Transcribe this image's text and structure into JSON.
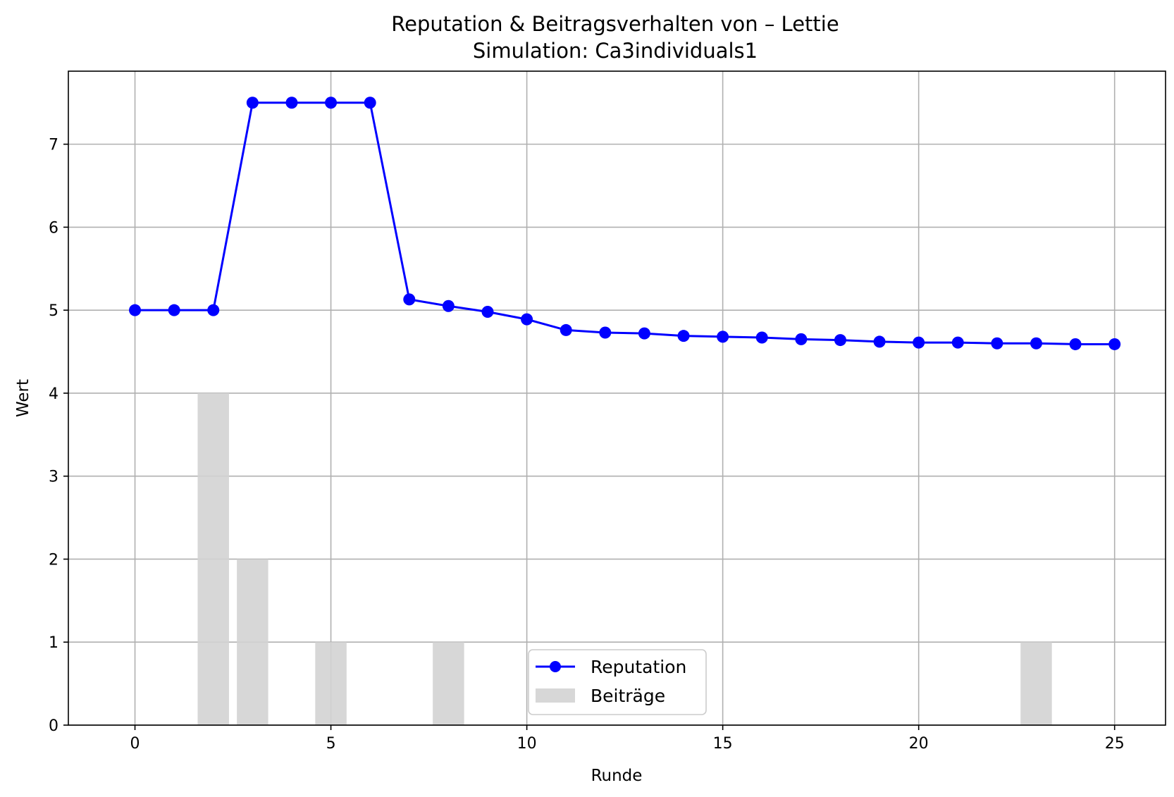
{
  "chart_data": {
    "type": "line",
    "title": "Reputation & Beitragsverhalten von – Lettie",
    "subtitle": "Simulation: Ca3individuals1",
    "xlabel": "Runde",
    "ylabel": "Wert",
    "xlim": [
      -1.7,
      26.3
    ],
    "ylim": [
      0,
      7.88
    ],
    "xticks": [
      0,
      5,
      10,
      15,
      20,
      25
    ],
    "yticks": [
      0,
      1,
      2,
      3,
      4,
      5,
      6,
      7
    ],
    "grid": true,
    "legend_position": "lower-center",
    "series": [
      {
        "name": "Reputation",
        "kind": "line",
        "color": "#0000ff",
        "marker": "circle",
        "x": [
          0,
          1,
          2,
          3,
          4,
          5,
          6,
          7,
          8,
          9,
          10,
          11,
          12,
          13,
          14,
          15,
          16,
          17,
          18,
          19,
          20,
          21,
          22,
          23,
          24,
          25
        ],
        "values": [
          5.0,
          5.0,
          5.0,
          7.5,
          7.5,
          7.5,
          7.5,
          5.13,
          5.05,
          4.98,
          4.89,
          4.76,
          4.73,
          4.72,
          4.69,
          4.68,
          4.67,
          4.65,
          4.64,
          4.62,
          4.61,
          4.61,
          4.6,
          4.6,
          4.59,
          4.59
        ]
      },
      {
        "name": "Beiträge",
        "kind": "bar",
        "color": "#d3d3d3",
        "x": [
          0,
          1,
          2,
          3,
          4,
          5,
          6,
          7,
          8,
          9,
          10,
          11,
          12,
          13,
          14,
          15,
          16,
          17,
          18,
          19,
          20,
          21,
          22,
          23,
          24,
          25
        ],
        "values": [
          0,
          0,
          4,
          2,
          0,
          1,
          0,
          0,
          1,
          0,
          0,
          0,
          0,
          0,
          0,
          0,
          0,
          0,
          0,
          0,
          0,
          0,
          0,
          1,
          0,
          0
        ]
      }
    ]
  }
}
